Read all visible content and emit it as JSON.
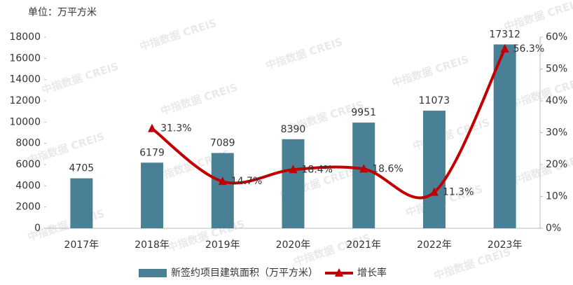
{
  "chart_data": {
    "type": "bar-line",
    "unit_label": "单位：万平方米",
    "watermark": "中指数据 CREIS",
    "categories": [
      "2017年",
      "2018年",
      "2019年",
      "2020年",
      "2021年",
      "2022年",
      "2023年"
    ],
    "series": [
      {
        "name": "新签约项目建筑面积（万平方米）",
        "type": "bar",
        "color": "#4a8095",
        "values": [
          4705,
          6179,
          7089,
          8390,
          9951,
          11073,
          17312
        ]
      },
      {
        "name": "增长率",
        "type": "line",
        "axis": "y2",
        "color": "#c00000",
        "values": [
          null,
          31.3,
          14.7,
          18.4,
          18.6,
          11.3,
          56.3
        ],
        "value_labels": [
          null,
          "31.3%",
          "14.7%",
          "18.4%",
          "18.6%",
          "11.3%",
          "56.3%"
        ]
      }
    ],
    "ylim": [
      0,
      18000
    ],
    "yticks": [
      0,
      2000,
      4000,
      6000,
      8000,
      10000,
      12000,
      14000,
      16000,
      18000
    ],
    "y2lim": [
      0,
      60
    ],
    "y2ticks": [
      {
        "value": 0,
        "label": "0%"
      },
      {
        "value": 10,
        "label": "10%"
      },
      {
        "value": 20,
        "label": "20%"
      },
      {
        "value": 30,
        "label": "30%"
      },
      {
        "value": 40,
        "label": "40%"
      },
      {
        "value": 50,
        "label": "50%"
      },
      {
        "value": 60,
        "label": "60%"
      }
    ],
    "legend": "bottom"
  }
}
